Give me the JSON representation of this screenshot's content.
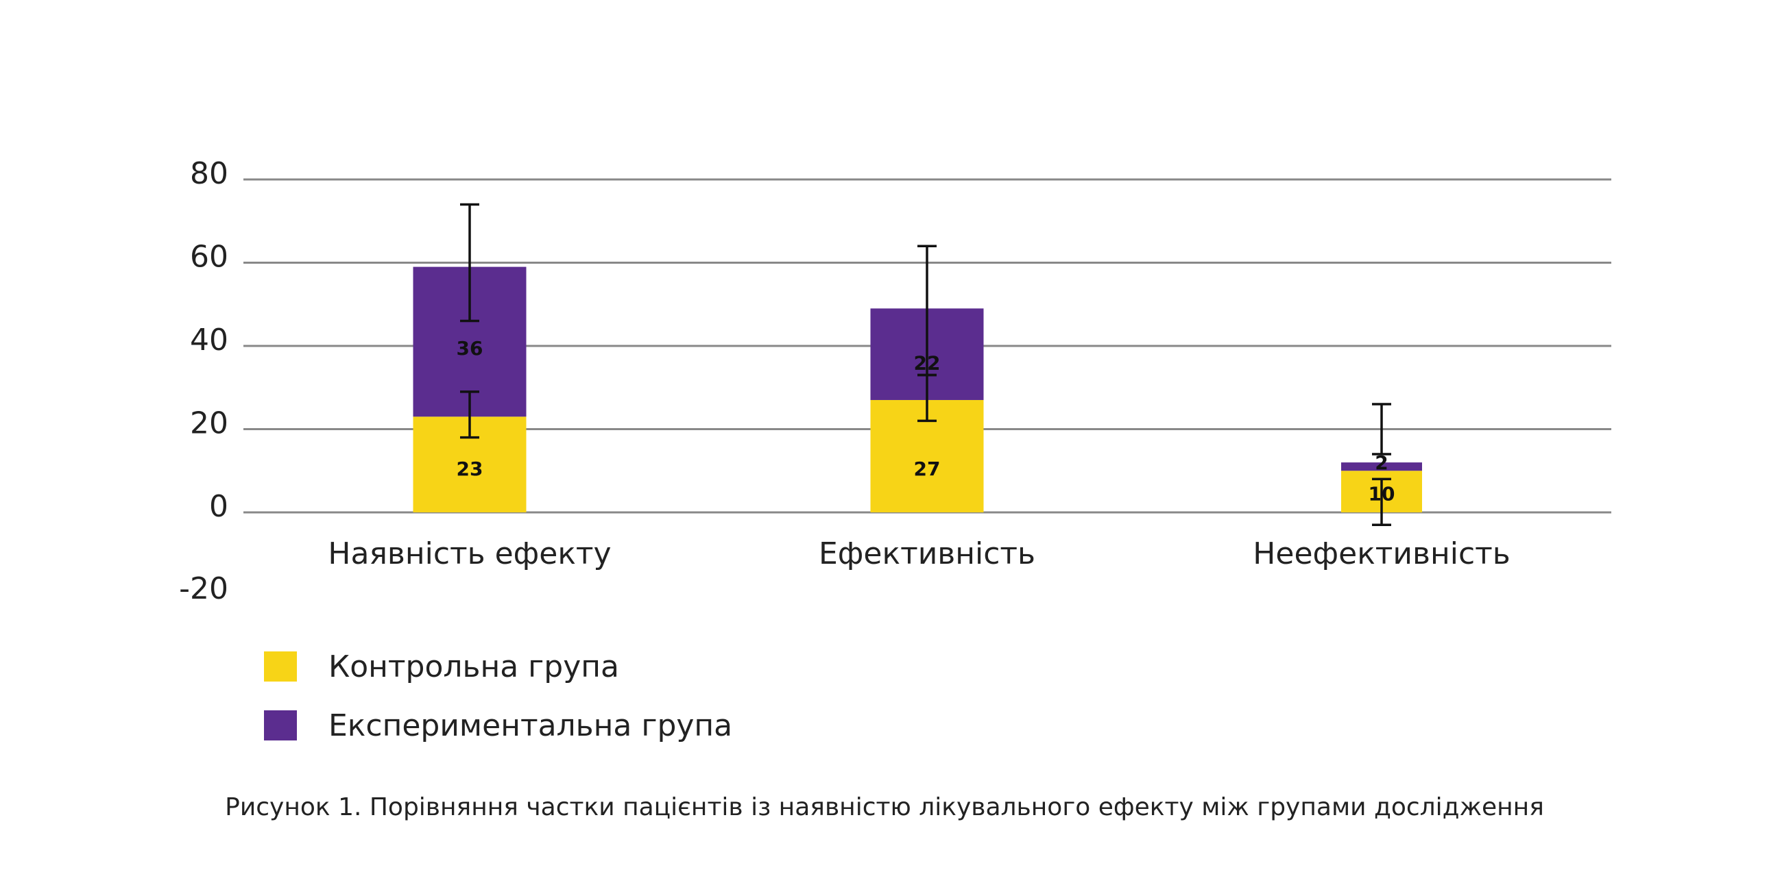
{
  "chart_data": {
    "type": "bar",
    "stacked": true,
    "categories": [
      "Наявність ефекту",
      "Ефективність",
      "Неефективність"
    ],
    "series": [
      {
        "name": "Контрольна група",
        "color": "#F7D417",
        "values": [
          23,
          27,
          10
        ],
        "error_low": [
          18,
          22,
          -3
        ],
        "error_high": [
          29,
          33,
          8
        ]
      },
      {
        "name": "Експериментальна група",
        "color": "#5B2D8F",
        "values": [
          36,
          22,
          2
        ],
        "error_low": [
          46,
          33,
          14
        ],
        "error_high": [
          74,
          64,
          26
        ]
      }
    ],
    "y_ticks": [
      80,
      60,
      40,
      20,
      0,
      -20
    ],
    "ylim": [
      -20,
      80
    ],
    "xlabel": "",
    "ylabel": "",
    "grid": true,
    "grid_color": "#888888",
    "legend_position": "bottom-left"
  },
  "legend": [
    {
      "label": "Контрольна група",
      "color": "#F7D417"
    },
    {
      "label": "Експериментальна група",
      "color": "#5B2D8F"
    }
  ],
  "caption": "Рисунок 1. Порівняння частки пацієнтів із наявністю лікувального ефекту між групами дослідження"
}
